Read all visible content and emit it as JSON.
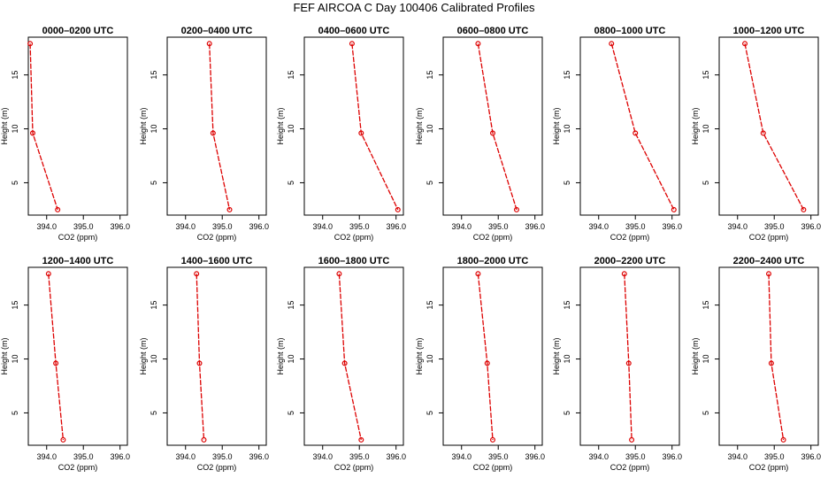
{
  "title": "FEF AIRCOA C  Day 100406  Calibrated Profiles",
  "chart_data": {
    "type": "line",
    "xlabel": "CO2 (ppm)",
    "ylabel": "Height (m)",
    "xlim": [
      393.5,
      396.2
    ],
    "ylim": [
      2,
      18.5
    ],
    "xticks": [
      394.0,
      395.0,
      396.0
    ],
    "xtick_labels": [
      "394.0",
      "395.0",
      "396.0"
    ],
    "yticks": [
      5,
      10,
      15
    ],
    "ytick_labels": [
      "5",
      "10",
      "15"
    ],
    "heights": [
      17.9,
      9.6,
      2.5
    ],
    "line_color": "#dd0000",
    "grid": false,
    "panels": [
      {
        "title": "0000–0200 UTC",
        "values": [
          393.55,
          393.62,
          394.3
        ]
      },
      {
        "title": "0200–0400 UTC",
        "values": [
          394.65,
          394.75,
          395.2
        ]
      },
      {
        "title": "0400–0600 UTC",
        "values": [
          394.8,
          395.05,
          396.05
        ]
      },
      {
        "title": "0600–0800 UTC",
        "values": [
          394.45,
          394.85,
          395.5
        ]
      },
      {
        "title": "0800–1000 UTC",
        "values": [
          394.35,
          395.0,
          396.05
        ]
      },
      {
        "title": "1000–1200 UTC",
        "values": [
          394.2,
          394.7,
          395.8
        ]
      },
      {
        "title": "1200–1400 UTC",
        "values": [
          394.05,
          394.25,
          394.45
        ]
      },
      {
        "title": "1400–1600 UTC",
        "values": [
          394.3,
          394.38,
          394.5
        ]
      },
      {
        "title": "1600–1800 UTC",
        "values": [
          394.45,
          394.6,
          395.05
        ]
      },
      {
        "title": "1800–2000 UTC",
        "values": [
          394.45,
          394.7,
          394.85
        ]
      },
      {
        "title": "2000–2200 UTC",
        "values": [
          394.7,
          394.82,
          394.9
        ]
      },
      {
        "title": "2200–2400 UTC",
        "values": [
          394.85,
          394.92,
          395.25
        ]
      }
    ]
  }
}
